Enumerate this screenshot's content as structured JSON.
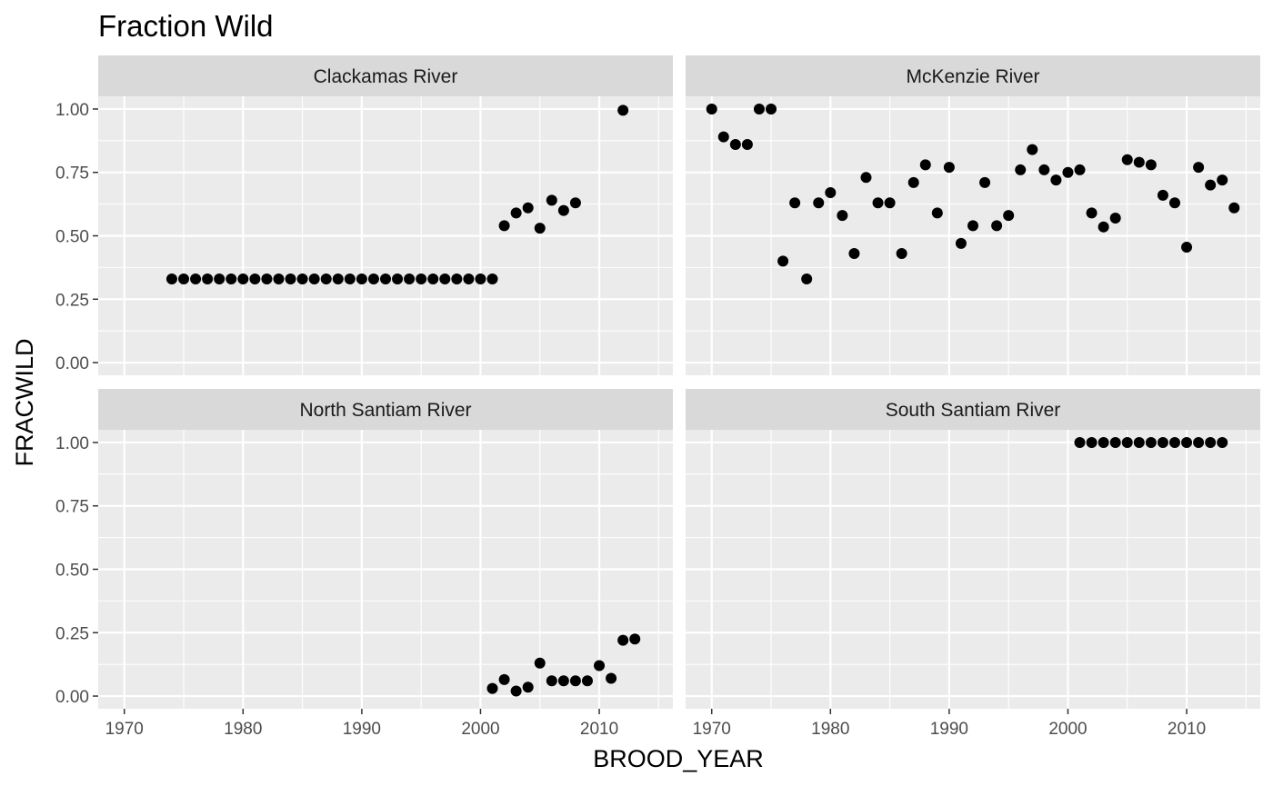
{
  "chart_data": {
    "type": "scatter",
    "title": "Fraction Wild",
    "xlabel": "BROOD_YEAR",
    "ylabel": "FRACWILD",
    "xlim": [
      1967.8,
      2016.2
    ],
    "ylim": [
      -0.05,
      1.05
    ],
    "x_ticks": [
      1970,
      1980,
      1990,
      2000,
      2010
    ],
    "x_tick_labels": [
      "1970",
      "1980",
      "1990",
      "2000",
      "2010"
    ],
    "y_ticks": [
      0,
      0.25,
      0.5,
      0.75,
      1.0
    ],
    "y_tick_labels": [
      "0.00",
      "0.25",
      "0.50",
      "0.75",
      "1.00"
    ],
    "grid": true,
    "legend": "none",
    "colors": {
      "panel_bg": "#ebebeb",
      "strip_bg": "#d9d9d9",
      "grid": "#ffffff",
      "point": "#000000"
    },
    "facets": [
      {
        "name": "Clackamas River",
        "points": [
          [
            1974,
            0.33
          ],
          [
            1975,
            0.33
          ],
          [
            1976,
            0.33
          ],
          [
            1977,
            0.33
          ],
          [
            1978,
            0.33
          ],
          [
            1979,
            0.33
          ],
          [
            1980,
            0.33
          ],
          [
            1981,
            0.33
          ],
          [
            1982,
            0.33
          ],
          [
            1983,
            0.33
          ],
          [
            1984,
            0.33
          ],
          [
            1985,
            0.33
          ],
          [
            1986,
            0.33
          ],
          [
            1987,
            0.33
          ],
          [
            1988,
            0.33
          ],
          [
            1989,
            0.33
          ],
          [
            1990,
            0.33
          ],
          [
            1991,
            0.33
          ],
          [
            1992,
            0.33
          ],
          [
            1993,
            0.33
          ],
          [
            1994,
            0.33
          ],
          [
            1995,
            0.33
          ],
          [
            1996,
            0.33
          ],
          [
            1997,
            0.33
          ],
          [
            1998,
            0.33
          ],
          [
            1999,
            0.33
          ],
          [
            2000,
            0.33
          ],
          [
            2001,
            0.33
          ],
          [
            2002,
            0.54
          ],
          [
            2003,
            0.59
          ],
          [
            2004,
            0.61
          ],
          [
            2005,
            0.53
          ],
          [
            2006,
            0.64
          ],
          [
            2007,
            0.6
          ],
          [
            2008,
            0.63
          ],
          [
            2012,
            0.995
          ]
        ]
      },
      {
        "name": "McKenzie River",
        "points": [
          [
            1970,
            1.0
          ],
          [
            1971,
            0.89
          ],
          [
            1972,
            0.86
          ],
          [
            1973,
            0.86
          ],
          [
            1974,
            1.0
          ],
          [
            1975,
            1.0
          ],
          [
            1976,
            0.4
          ],
          [
            1977,
            0.63
          ],
          [
            1978,
            0.33
          ],
          [
            1979,
            0.63
          ],
          [
            1980,
            0.67
          ],
          [
            1981,
            0.58
          ],
          [
            1982,
            0.43
          ],
          [
            1983,
            0.73
          ],
          [
            1984,
            0.63
          ],
          [
            1985,
            0.63
          ],
          [
            1986,
            0.43
          ],
          [
            1987,
            0.71
          ],
          [
            1988,
            0.78
          ],
          [
            1989,
            0.59
          ],
          [
            1990,
            0.77
          ],
          [
            1991,
            0.47
          ],
          [
            1992,
            0.54
          ],
          [
            1993,
            0.71
          ],
          [
            1994,
            0.54
          ],
          [
            1995,
            0.58
          ],
          [
            1996,
            0.76
          ],
          [
            1997,
            0.84
          ],
          [
            1998,
            0.76
          ],
          [
            1999,
            0.72
          ],
          [
            2000,
            0.75
          ],
          [
            2001,
            0.76
          ],
          [
            2002,
            0.59
          ],
          [
            2003,
            0.535
          ],
          [
            2004,
            0.57
          ],
          [
            2005,
            0.8
          ],
          [
            2006,
            0.79
          ],
          [
            2007,
            0.78
          ],
          [
            2008,
            0.66
          ],
          [
            2009,
            0.63
          ],
          [
            2010,
            0.455
          ],
          [
            2011,
            0.77
          ],
          [
            2012,
            0.7
          ],
          [
            2013,
            0.72
          ],
          [
            2014,
            0.61
          ]
        ]
      },
      {
        "name": "North Santiam River",
        "points": [
          [
            2001,
            0.03
          ],
          [
            2002,
            0.065
          ],
          [
            2003,
            0.02
          ],
          [
            2004,
            0.035
          ],
          [
            2005,
            0.13
          ],
          [
            2006,
            0.06
          ],
          [
            2007,
            0.06
          ],
          [
            2008,
            0.06
          ],
          [
            2009,
            0.06
          ],
          [
            2010,
            0.12
          ],
          [
            2011,
            0.07
          ],
          [
            2012,
            0.22
          ],
          [
            2013,
            0.225
          ]
        ]
      },
      {
        "name": "South Santiam River",
        "points": [
          [
            2001,
            1.0
          ],
          [
            2002,
            1.0
          ],
          [
            2003,
            1.0
          ],
          [
            2004,
            1.0
          ],
          [
            2005,
            1.0
          ],
          [
            2006,
            1.0
          ],
          [
            2007,
            1.0
          ],
          [
            2008,
            1.0
          ],
          [
            2009,
            1.0
          ],
          [
            2010,
            1.0
          ],
          [
            2011,
            1.0
          ],
          [
            2012,
            1.0
          ],
          [
            2013,
            1.0
          ]
        ]
      }
    ]
  }
}
